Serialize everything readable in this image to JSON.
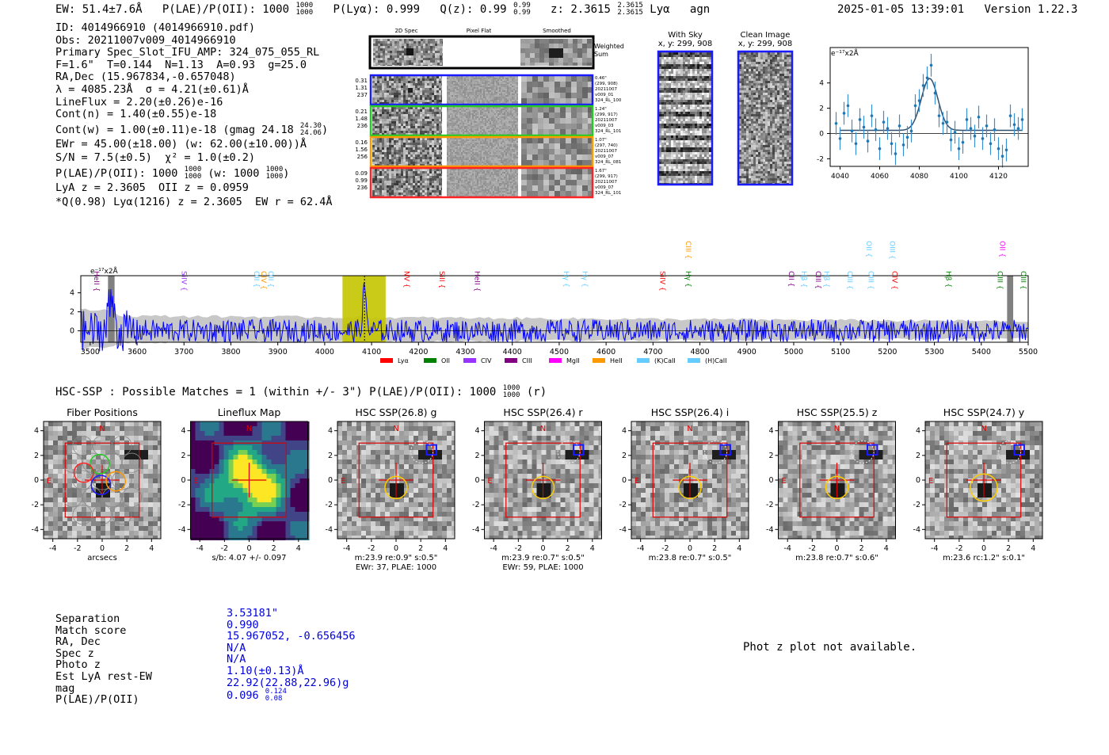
{
  "header": {
    "ew": "EW: 51.4±7.6Å",
    "plae": "P(LAE)/P(OII): 1000",
    "plae_hi": "1000",
    "plae_lo": "1000",
    "plya": "P(Lyα): 0.999",
    "q": "Q(z): 0.99",
    "q_hi": "0.99",
    "q_lo": "0.99",
    "z": "z: 2.3615",
    "z_hi": "2.3615",
    "z_lo": "2.3615",
    "line": "Lyα",
    "agn": "agn",
    "timestamp": "2025-01-05 13:39:01",
    "version": "Version 1.22.3"
  },
  "info": {
    "lines": [
      "ID: 4014966910 (4014966910.pdf)",
      "Obs: 20211007v009_4014966910",
      "Primary Spec_Slot_IFU_AMP: 324_075_055_RL",
      "F=1.6\"  T=0.144  N=1.13  A=0.93  g=25.0",
      "RA,Dec (15.967834,-0.657048)",
      "λ = 4085.23Å  σ = 4.21(±0.61)Å",
      "LineFlux = 2.20(±0.26)e-16",
      "Cont(n) = 1.40(±0.55)e-18"
    ],
    "contw": "Cont(w) = 1.00(±0.11)e-18 (gmag 24.18",
    "contw_hi": "24.30",
    "contw_lo": "24.06",
    "contw_end": ")",
    "ewr": "EWr = 45.00(±18.00) (w: 62.00(±10.00))Å",
    "sn": "S/N = 7.5(±0.5)  χ² = 1.0(±0.2)",
    "plae": "P(LAE)/P(OII): 1000",
    "plae_hi": "1000",
    "plae_lo": "1000",
    "plae_w": "(w: 1000",
    "plae_w_hi": "1000",
    "plae_w_lo": "1000",
    "plae_w_end": ")",
    "lyaz": "LyA z = 2.3605  OII z = 0.0959",
    "qline": "*Q(0.98) Lyα(1216) z = 2.3605  EW r = 62.4Å"
  },
  "spec2d": {
    "col_headers": [
      "2D Spec",
      "Pixel Flat",
      "Smoothed"
    ],
    "weighted_label": "Weighted Sum",
    "rows": [
      {
        "left": [
          "0.31",
          "1.31",
          "237"
        ],
        "right": [
          "0.46\"",
          "(299, 908)",
          "20211007",
          "v009_01",
          "324_RL_100"
        ],
        "color": "#1a1aff"
      },
      {
        "left": [
          "0.21",
          "1.48",
          "236"
        ],
        "right": [
          "1.24\"",
          "(299, 917)",
          "20211007",
          "v009_03",
          "324_RL_101"
        ],
        "color": "#22cc22"
      },
      {
        "left": [
          "0.16",
          "1.56",
          "256"
        ],
        "right": [
          "1.07\"",
          "(297, 740)",
          "20211007",
          "v009_07",
          "324_RL_081"
        ],
        "color": "#ff9900"
      },
      {
        "left": [
          "0.09",
          "0.99",
          "236"
        ],
        "right": [
          "1.67\"",
          "(299, 917)",
          "20211007",
          "v009_07",
          "324_RL_101"
        ],
        "color": "#ff2222"
      }
    ]
  },
  "sky": {
    "with_sky_title": "With Sky",
    "with_sky_coord": "x, y: 299, 908",
    "clean_title": "Clean Image",
    "clean_coord": "x, y: 299, 908"
  },
  "chart_data": [
    {
      "type": "scatter",
      "title": "",
      "ylabel_inset": "e⁻¹⁷x2Å",
      "xlim": [
        4035,
        4135
      ],
      "ylim": [
        -2.6,
        6.8
      ],
      "xticks": [
        4040,
        4060,
        4080,
        4100,
        4120
      ],
      "yticks": [
        -2,
        0,
        2,
        4
      ],
      "x": [
        4038,
        4040,
        4042,
        4044,
        4046,
        4048,
        4050,
        4052,
        4054,
        4056,
        4058,
        4060,
        4062,
        4064,
        4066,
        4068,
        4070,
        4072,
        4074,
        4076,
        4078,
        4080,
        4082,
        4084,
        4086,
        4088,
        4090,
        4092,
        4094,
        4096,
        4098,
        4100,
        4102,
        4104,
        4106,
        4108,
        4110,
        4112,
        4114,
        4116,
        4118,
        4120,
        4122,
        4124,
        4126,
        4128,
        4130,
        4132
      ],
      "y": [
        0.8,
        -0.4,
        1.6,
        2.2,
        0.2,
        -0.8,
        1.1,
        0.5,
        -0.6,
        1.4,
        0.3,
        -1.2,
        0.9,
        0.4,
        -0.8,
        -1.6,
        0.6,
        -0.9,
        -0.3,
        0.2,
        2.2,
        2.6,
        3.8,
        4.4,
        5.4,
        3.2,
        1.4,
        0.8,
        0.9,
        -0.5,
        0.1,
        -1.2,
        -0.7,
        1.1,
        0.4,
        -0.2,
        1.3,
        -0.4,
        0.6,
        -0.8,
        0.3,
        -1.2,
        -1.8,
        -1.3,
        1.4,
        0.7,
        0.4,
        1.1
      ],
      "err": 0.9,
      "fit": {
        "amp": 4.1,
        "mu": 4085.2,
        "sigma": 4.2,
        "base": 0.25
      }
    },
    {
      "type": "line",
      "title": "",
      "ylabel_inset": "e⁻¹⁷x2Å",
      "xlim": [
        3480,
        5500
      ],
      "ylim": [
        -1.2,
        5.8
      ],
      "xticks": [
        3500,
        3600,
        3700,
        3800,
        3900,
        4000,
        4100,
        4200,
        4300,
        4400,
        4500,
        4600,
        4700,
        4800,
        4900,
        5000,
        5100,
        5200,
        5300,
        5400,
        5500
      ],
      "yticks": [
        0,
        2,
        4
      ],
      "highlight": [
        4038,
        4130
      ],
      "peak": 4085,
      "gray_bands": [
        [
          3538,
          3552
        ],
        [
          5455,
          5468
        ]
      ],
      "emission_lines": [
        {
          "name": "HeII",
          "x": 3504,
          "color": "#800080",
          "row": 2
        },
        {
          "name": "SiIV",
          "x": 3690,
          "color": "#9933ff",
          "row": 2
        },
        {
          "name": "OII",
          "x": 3845,
          "color": "#66ccff",
          "row": 2
        },
        {
          "name": "CIV",
          "x": 3860,
          "color": "#ff9900",
          "row": 2
        },
        {
          "name": "OII",
          "x": 3875,
          "color": "#66ccff",
          "row": 2
        },
        {
          "name": "NV",
          "x": 4165,
          "color": "#ff0000",
          "row": 2
        },
        {
          "name": "SiII",
          "x": 4240,
          "color": "#ff0000",
          "row": 2
        },
        {
          "name": "HeII",
          "x": 4315,
          "color": "#800080",
          "row": 2
        },
        {
          "name": "Hγ",
          "x": 4505,
          "color": "#66ccff",
          "row": 2
        },
        {
          "name": "Hγ",
          "x": 4545,
          "color": "#66ccff",
          "row": 2
        },
        {
          "name": "SiIV",
          "x": 4710,
          "color": "#ff0000",
          "row": 2
        },
        {
          "name": "Hγ",
          "x": 4765,
          "color": "#008000",
          "row": 2
        },
        {
          "name": "CIII",
          "x": 4765,
          "color": "#ff9900",
          "row": 1
        },
        {
          "name": "CII",
          "x": 4985,
          "color": "#800080",
          "row": 2
        },
        {
          "name": "Hβ",
          "x": 5012,
          "color": "#66ccff",
          "row": 2
        },
        {
          "name": "CIII",
          "x": 5042,
          "color": "#800080",
          "row": 2
        },
        {
          "name": "Hβ",
          "x": 5060,
          "color": "#66ccff",
          "row": 2
        },
        {
          "name": "OIII",
          "x": 5110,
          "color": "#66ccff",
          "row": 2
        },
        {
          "name": "OIII",
          "x": 5155,
          "color": "#66ccff",
          "row": 2
        },
        {
          "name": "OII",
          "x": 5150,
          "color": "#66ccff",
          "row": 1
        },
        {
          "name": "OIII",
          "x": 5200,
          "color": "#66ccff",
          "row": 1
        },
        {
          "name": "CIV",
          "x": 5205,
          "color": "#ff0000",
          "row": 2
        },
        {
          "name": "Hβ",
          "x": 5320,
          "color": "#008000",
          "row": 2
        },
        {
          "name": "OIII",
          "x": 5430,
          "color": "#008000",
          "row": 2
        },
        {
          "name": "OII",
          "x": 5435,
          "color": "#ff00ff",
          "row": 1
        },
        {
          "name": "OIII",
          "x": 5480,
          "color": "#008000",
          "row": 2
        }
      ],
      "legend": [
        {
          "name": "Lyα",
          "color": "#ff0000"
        },
        {
          "name": "OII",
          "color": "#008000"
        },
        {
          "name": "CIV",
          "color": "#9933ff"
        },
        {
          "name": "CIII",
          "color": "#800080"
        },
        {
          "name": "MgII",
          "color": "#ff00ff"
        },
        {
          "name": "HeII",
          "color": "#ff9900"
        },
        {
          "name": "(K)CaII",
          "color": "#66ccff"
        },
        {
          "name": "(H)CaII",
          "color": "#66ccff"
        }
      ]
    }
  ],
  "hsc": {
    "title": "HSC-SSP : Possible Matches = 1 (within +/- 3\")  P(LAE)/P(OII): 1000",
    "title_hi": "1000",
    "title_lo": "1000",
    "title_end": "(r)",
    "compass_n": "N",
    "compass_e": "E",
    "axis_ticks": [
      "-4",
      "-2",
      "0",
      "2",
      "4"
    ],
    "panels": [
      {
        "title": "Fiber Positions",
        "caption": "arcsecs",
        "caption2": "",
        "kind": "fiber"
      },
      {
        "title": "Lineflux Map",
        "caption": "s/b: 4.07 +/- 0.097",
        "caption2": "",
        "kind": "flux"
      },
      {
        "title": "HSC SSP(26.8) g",
        "caption": "m:23.9  re:0.9\"  s:0.5\"",
        "caption2": "EWr: 37, PLAE: 1000",
        "kind": "hsc"
      },
      {
        "title": "HSC SSP(26.4) r",
        "caption": "m:23.9  re:0.7\"  s:0.5\"",
        "caption2": "EWr: 59, PLAE: 1000",
        "kind": "hsc"
      },
      {
        "title": "HSC SSP(26.4) i",
        "caption": "m:23.8  re:0.7\"  s:0.5\"",
        "caption2": "",
        "kind": "hsc"
      },
      {
        "title": "HSC SSP(25.5) z",
        "caption": "m:23.8  re:0.7\"  s:0.6\"",
        "caption2": "",
        "kind": "hsc"
      },
      {
        "title": "HSC SSP(24.7) y",
        "caption": "m:23.6  rc:1.2\"  s:0.1\"",
        "caption2": "",
        "kind": "hsc"
      }
    ]
  },
  "match_table": {
    "labels": [
      "Separation",
      "Match score",
      "RA, Dec",
      "Spec z",
      "Photo z",
      "Est LyA rest-EW",
      "mag",
      "P(LAE)/P(OII)"
    ],
    "values": [
      "3.53181\"",
      "0.990",
      "15.967052, -0.656456",
      "N/A",
      "N/A",
      "1.10(±0.13)Å",
      "22.92(22.88,22.96)g",
      "0.096"
    ],
    "plae_hi": "0.124",
    "plae_lo": "0.08"
  },
  "photz_note": "Phot z plot not available."
}
